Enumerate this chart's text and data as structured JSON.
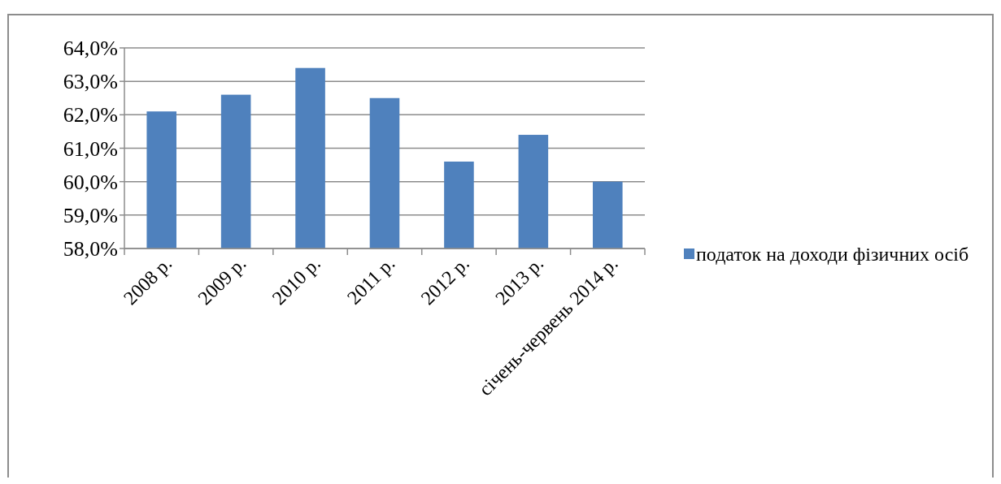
{
  "chart_data": {
    "type": "bar",
    "categories": [
      "2008 р.",
      "2009 р.",
      "2010 р.",
      "2011 р.",
      "2012 р.",
      "2013 р.",
      "січень-червень 2014 р."
    ],
    "series": [
      {
        "name": "податок на доходи фізичних осіб",
        "color": "#4f81bd",
        "values": [
          62.1,
          62.6,
          63.4,
          62.5,
          60.6,
          61.4,
          60.0
        ]
      }
    ],
    "ylim": [
      58,
      64
    ],
    "yticks": [
      {
        "value": 58,
        "label": "58,0%"
      },
      {
        "value": 59,
        "label": "59,0%"
      },
      {
        "value": 60,
        "label": "60,0%"
      },
      {
        "value": 61,
        "label": "61,0%"
      },
      {
        "value": 62,
        "label": "62,0%"
      },
      {
        "value": 63,
        "label": "63,0%"
      },
      {
        "value": 64,
        "label": "64,0%"
      }
    ],
    "grid": "y",
    "legend": "right"
  }
}
